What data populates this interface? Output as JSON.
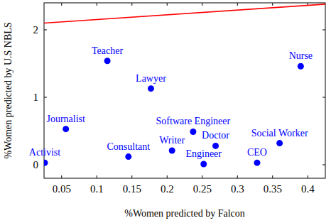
{
  "chart_data": {
    "type": "scatter",
    "x_label": "%Women predicted by Falcon",
    "y_label": "%Women predicted by U.S NBLS",
    "labels": [
      "Activist",
      "Journalist",
      "Teacher",
      "Consultant",
      "Lawyer",
      "Writer",
      "Software Engineer",
      "Engineer",
      "Doctor",
      "CEO",
      "Social Worker",
      "Nurse"
    ],
    "x": [
      0.026,
      0.056,
      0.115,
      0.145,
      0.177,
      0.207,
      0.237,
      0.252,
      0.269,
      0.328,
      0.36,
      0.39
    ],
    "values": [
      0.03,
      0.53,
      1.54,
      0.12,
      1.13,
      0.21,
      0.49,
      0.01,
      0.28,
      0.03,
      0.32,
      1.46
    ],
    "color": "#0000ff",
    "marker": "circle",
    "reference_line": {
      "x": [
        0.025,
        0.425
      ],
      "values": [
        2.1,
        2.38
      ],
      "color": "#ff0000",
      "line_style": "solid"
    },
    "xlim": [
      0.025,
      0.425
    ],
    "ylim": [
      -0.2,
      2.4
    ],
    "xticks": [
      0.05,
      0.1,
      0.15,
      0.2,
      0.25,
      0.3,
      0.35,
      0.4
    ],
    "yticks": [
      0,
      1,
      2
    ],
    "grid": false
  }
}
